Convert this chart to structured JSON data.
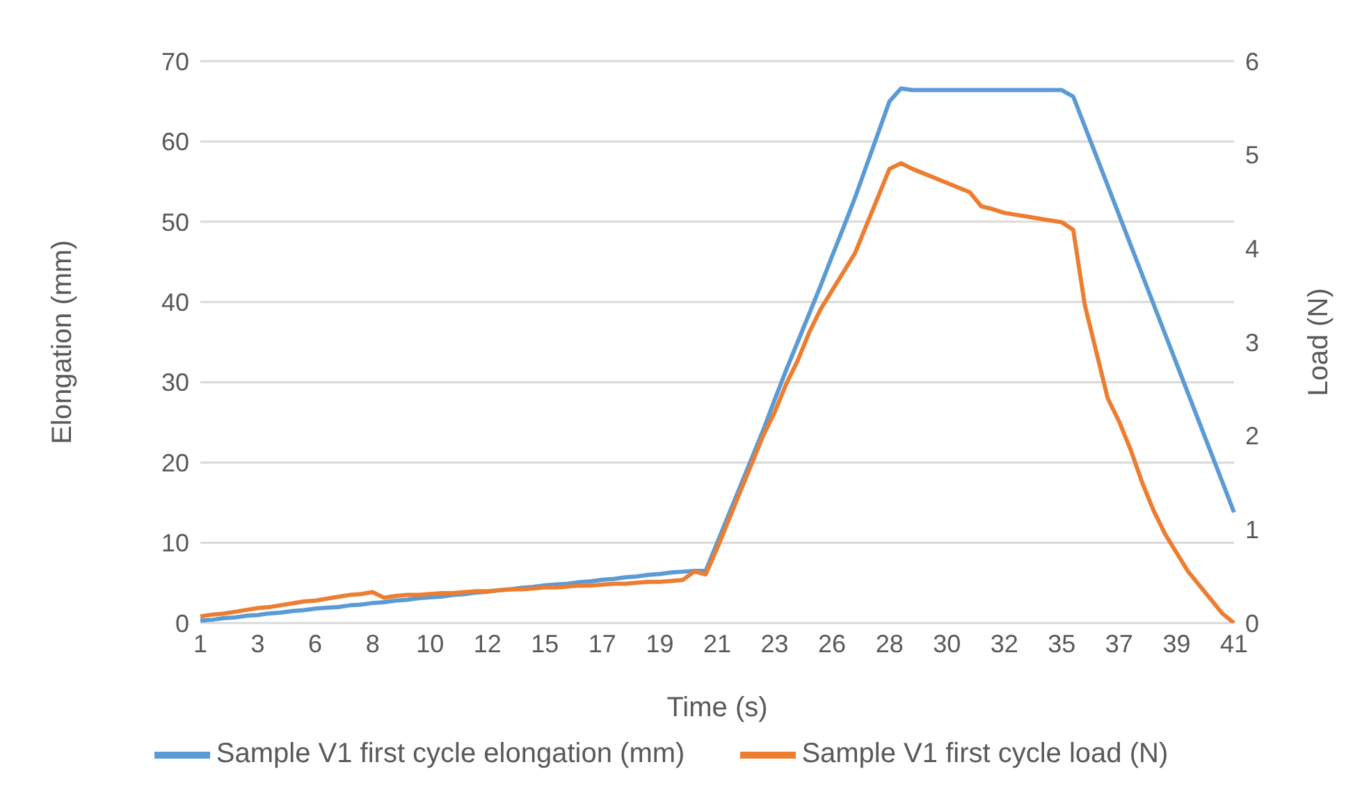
{
  "chart_data": {
    "type": "line",
    "xlabel": "Time (s)",
    "ylabel": "Elongation (mm)",
    "y2label": "Load (N)",
    "categories": [
      "1",
      null,
      null,
      null,
      null,
      "3",
      null,
      null,
      null,
      null,
      "6",
      null,
      null,
      null,
      null,
      "8",
      null,
      null,
      null,
      null,
      "10",
      null,
      null,
      null,
      null,
      "12",
      null,
      null,
      null,
      null,
      "15",
      null,
      null,
      null,
      null,
      "17",
      null,
      null,
      null,
      null,
      "19",
      null,
      null,
      null,
      null,
      "21",
      null,
      null,
      null,
      null,
      "23",
      null,
      null,
      null,
      null,
      "26",
      null,
      null,
      null,
      null,
      "28",
      null,
      null,
      null,
      null,
      "30",
      null,
      null,
      null,
      null,
      "32",
      null,
      null,
      null,
      null,
      "35",
      null,
      null,
      null,
      null,
      "37",
      null,
      null,
      null,
      null,
      "39",
      null,
      null,
      null,
      null,
      "41"
    ],
    "series": [
      {
        "name": "Sample V1 first cycle elongation (mm)",
        "color": "#5b9bd5",
        "values": [
          0.3,
          0.4,
          0.6,
          0.7,
          0.9,
          1.0,
          1.2,
          1.3,
          1.5,
          1.6,
          1.8,
          1.9,
          2.0,
          2.2,
          2.3,
          2.5,
          2.6,
          2.8,
          2.9,
          3.1,
          3.2,
          3.3,
          3.5,
          3.6,
          3.8,
          3.9,
          4.1,
          4.2,
          4.4,
          4.5,
          4.7,
          4.8,
          4.9,
          5.1,
          5.2,
          5.4,
          5.5,
          5.7,
          5.8,
          6.0,
          6.1,
          6.3,
          6.4,
          6.5,
          6.5,
          10,
          13.5,
          17,
          20.5,
          24,
          27.8,
          31.5,
          35,
          38.5,
          42,
          45.7,
          49.3,
          53,
          57,
          61,
          65,
          66.6,
          66.4,
          66.4,
          66.4,
          66.4,
          66.4,
          66.4,
          66.4,
          66.4,
          66.4,
          66.4,
          66.4,
          66.4,
          66.4,
          66.4,
          65.6,
          61.9,
          58.2,
          54.5,
          50.8,
          47.1,
          43.4,
          39.7,
          36.0,
          32.3,
          28.6,
          24.9,
          21.2,
          17.5,
          13.8
        ]
      },
      {
        "name": "Sample V1 first cycle load (N)",
        "color": "#ed7d31",
        "axis": "y2",
        "values": [
          0.07,
          0.09,
          0.1,
          0.12,
          0.14,
          0.16,
          0.17,
          0.19,
          0.21,
          0.23,
          0.24,
          0.26,
          0.28,
          0.3,
          0.31,
          0.33,
          0.27,
          0.29,
          0.3,
          0.3,
          0.31,
          0.32,
          0.32,
          0.33,
          0.34,
          0.34,
          0.35,
          0.36,
          0.36,
          0.37,
          0.38,
          0.38,
          0.39,
          0.4,
          0.4,
          0.41,
          0.42,
          0.42,
          0.43,
          0.44,
          0.44,
          0.45,
          0.46,
          0.55,
          0.52,
          0.8,
          1.1,
          1.4,
          1.7,
          2.0,
          2.25,
          2.55,
          2.8,
          3.1,
          3.35,
          3.55,
          3.75,
          3.95,
          4.25,
          4.55,
          4.85,
          4.91,
          4.85,
          4.8,
          4.75,
          4.7,
          4.65,
          4.6,
          4.45,
          4.42,
          4.38,
          4.36,
          4.34,
          4.32,
          4.3,
          4.28,
          4.2,
          3.4,
          2.9,
          2.4,
          2.15,
          1.85,
          1.5,
          1.2,
          0.95,
          0.75,
          0.55,
          0.4,
          0.25,
          0.1,
          0
        ]
      }
    ],
    "ylim": [
      0,
      70
    ],
    "yticks": [
      0,
      10,
      20,
      30,
      40,
      50,
      60,
      70
    ],
    "y2lim": [
      0,
      6
    ],
    "y2ticks": [
      0,
      1,
      2,
      3,
      4,
      5,
      6
    ],
    "grid": "y",
    "legend": "bottom",
    "marker": "none",
    "line_style": "solid"
  }
}
